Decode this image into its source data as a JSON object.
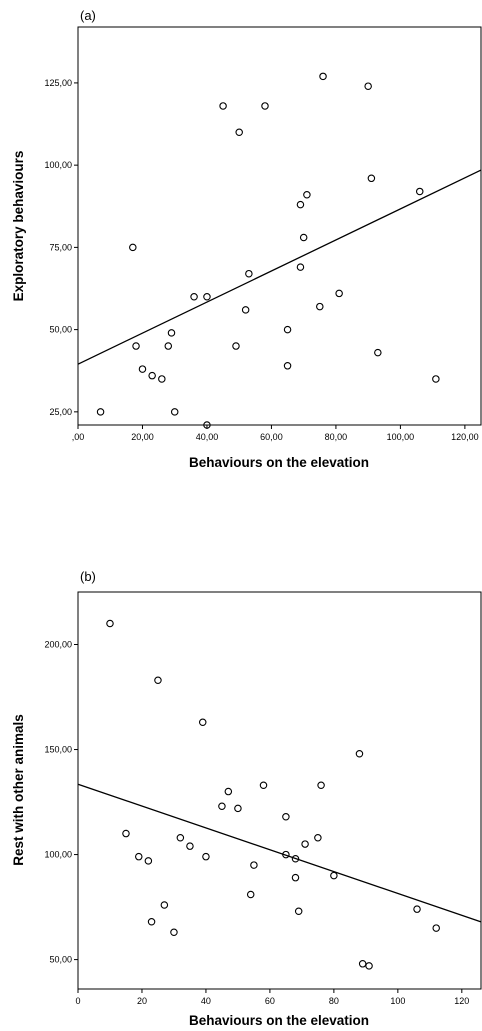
{
  "chart_data": [
    {
      "type": "scatter",
      "panel": "(a)",
      "xlabel": "Behaviours on the elevation",
      "ylabel": "Exploratory behaviours",
      "xlim": [
        0,
        125
      ],
      "ylim": [
        21,
        142
      ],
      "x_ticks": [
        0,
        20,
        40,
        60,
        80,
        100,
        120
      ],
      "x_tick_labels": [
        ",00",
        "20,00",
        "40,00",
        "60,00",
        "80,00",
        "100,00",
        "120,00"
      ],
      "y_ticks": [
        25,
        50,
        75,
        100,
        125
      ],
      "y_tick_labels": [
        "25,00",
        "50,00",
        "75,00",
        "100,00",
        "125,00"
      ],
      "points": [
        [
          7,
          25
        ],
        [
          17,
          75
        ],
        [
          18,
          45
        ],
        [
          20,
          38
        ],
        [
          23,
          36
        ],
        [
          26,
          35
        ],
        [
          28,
          45
        ],
        [
          29,
          49
        ],
        [
          30,
          25
        ],
        [
          36,
          60
        ],
        [
          40,
          60
        ],
        [
          40,
          21
        ],
        [
          45,
          118
        ],
        [
          49,
          45
        ],
        [
          50,
          110
        ],
        [
          52,
          56
        ],
        [
          53,
          67
        ],
        [
          58,
          118
        ],
        [
          65,
          50
        ],
        [
          65,
          39
        ],
        [
          69,
          69
        ],
        [
          69,
          88
        ],
        [
          70,
          78
        ],
        [
          71,
          91
        ],
        [
          75,
          57
        ],
        [
          76,
          127
        ],
        [
          81,
          61
        ],
        [
          90,
          124
        ],
        [
          91,
          96
        ],
        [
          93,
          43
        ],
        [
          106,
          92
        ],
        [
          111,
          35
        ]
      ],
      "fit_line": {
        "intercept": 39.5,
        "slope": 0.472
      },
      "grid": false
    },
    {
      "type": "scatter",
      "panel": "(b)",
      "xlabel": "Behaviours on the elevation",
      "ylabel": "Rest with other animals",
      "xlim": [
        0,
        126
      ],
      "ylim": [
        36,
        225
      ],
      "x_ticks": [
        0,
        20,
        40,
        60,
        80,
        100,
        120
      ],
      "x_tick_labels": [
        "0",
        "20",
        "40",
        "60",
        "80",
        "100",
        "120"
      ],
      "y_ticks": [
        50,
        100,
        150,
        200
      ],
      "y_tick_labels": [
        "50,00",
        "100,00",
        "150,00",
        "200,00"
      ],
      "points": [
        [
          10,
          210
        ],
        [
          15,
          110
        ],
        [
          19,
          99
        ],
        [
          22,
          97
        ],
        [
          23,
          68
        ],
        [
          25,
          183
        ],
        [
          27,
          76
        ],
        [
          30,
          63
        ],
        [
          32,
          108
        ],
        [
          35,
          104
        ],
        [
          39,
          163
        ],
        [
          40,
          99
        ],
        [
          45,
          123
        ],
        [
          47,
          130
        ],
        [
          50,
          122
        ],
        [
          54,
          81
        ],
        [
          55,
          95
        ],
        [
          58,
          133
        ],
        [
          65,
          118
        ],
        [
          65,
          100
        ],
        [
          68,
          98
        ],
        [
          68,
          89
        ],
        [
          69,
          73
        ],
        [
          71,
          105
        ],
        [
          75,
          108
        ],
        [
          76,
          133
        ],
        [
          80,
          90
        ],
        [
          88,
          148
        ],
        [
          89,
          48
        ],
        [
          91,
          47
        ],
        [
          106,
          74
        ],
        [
          112,
          65
        ]
      ],
      "fit_line": {
        "intercept": 133.5,
        "slope": -0.52
      },
      "grid": false
    }
  ]
}
